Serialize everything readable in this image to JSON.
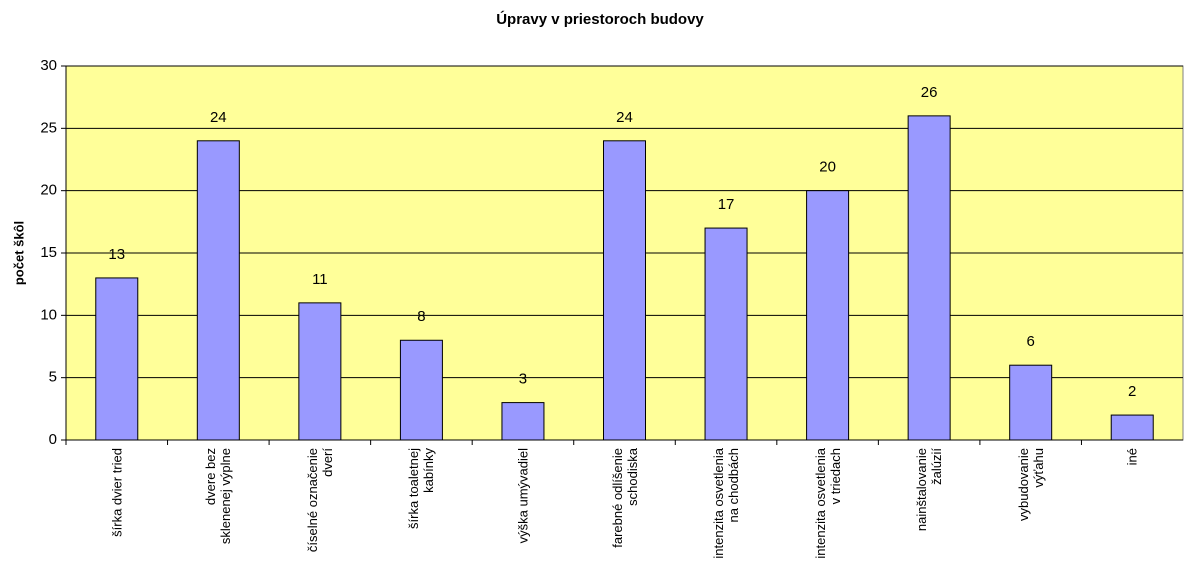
{
  "chart_data": {
    "type": "bar",
    "title": "Úpravy v priestoroch budovy",
    "y_label": "počet škôl",
    "categories": [
      "šírka dvier tried",
      "dvere bez sklenenej výplne",
      "číselné označenie dverí",
      "šírka toaletnej kabínky",
      "výška umývadiel",
      "farebné odlíšenie schodiska",
      "intenzita osvetlenia na chodbách",
      "intenzita osvetlenia v triedach",
      "nainštalovanie žalúzií",
      "vybudovanie výťahu",
      "iné"
    ],
    "values": [
      13,
      24,
      11,
      8,
      3,
      24,
      17,
      20,
      26,
      6,
      2
    ],
    "color": "#9999ff",
    "background": "#ffff99",
    "ylim": [
      0,
      30
    ],
    "yticks": [
      0,
      5,
      10,
      15,
      20,
      25,
      30
    ],
    "grid": true
  }
}
